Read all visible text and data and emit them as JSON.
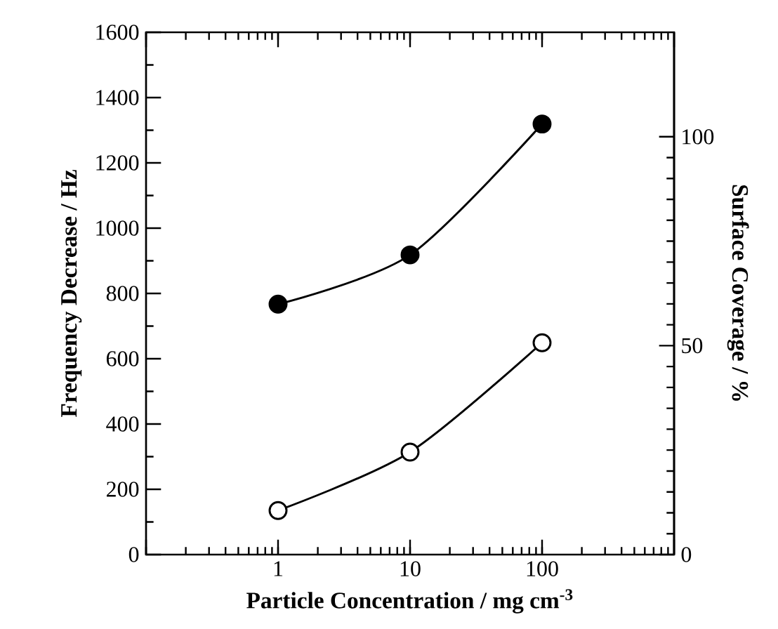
{
  "chart_data": {
    "type": "line",
    "xlabel": "Particle Concentration / mg cm$^{-3}$",
    "ylabel": "Frequency Decrease / Hz",
    "y2label": "Surface Coverage / %",
    "log": "x",
    "xlim": [
      0.1,
      1000
    ],
    "xticks": [
      {
        "value": 0.1,
        "label": null
      },
      1,
      10,
      100,
      {
        "value": 1000,
        "label": null
      }
    ],
    "ylim": [
      0,
      1600
    ],
    "yticks": [
      0,
      200,
      400,
      600,
      800,
      1000,
      1200,
      1400,
      1600
    ],
    "y2lim": [
      0,
      125
    ],
    "y2ticks": [
      0,
      50,
      100
    ],
    "marker": "circle",
    "line_style": "solid",
    "grid": false,
    "series": [
      {
        "color": "#000000",
        "x": [
          1,
          10,
          100
        ],
        "values": [
          767,
          918,
          1319
        ]
      },
      {
        "color": "#ffffff",
        "x": [
          1,
          10,
          100
        ],
        "values": [
          135,
          314,
          649
        ]
      }
    ]
  }
}
